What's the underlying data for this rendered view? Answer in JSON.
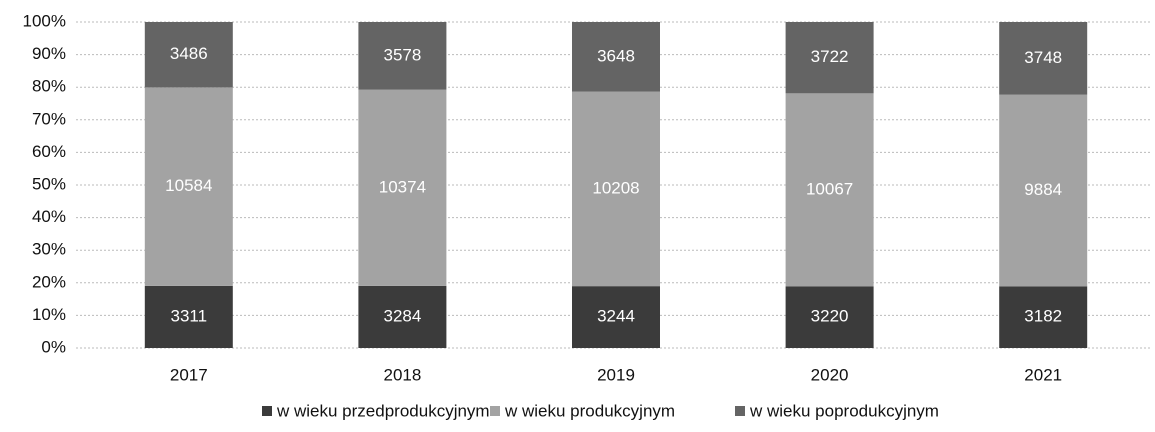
{
  "chart_data": {
    "type": "bar",
    "stack": "percent",
    "categories": [
      "2017",
      "2018",
      "2019",
      "2020",
      "2021"
    ],
    "series": [
      {
        "name": "w wieku przedprodukcyjnym",
        "color": "#3b3b3b",
        "values": [
          3311,
          3284,
          3244,
          3220,
          3182
        ]
      },
      {
        "name": "w wieku produkcyjnym",
        "color": "#a3a3a3",
        "values": [
          10584,
          10374,
          10208,
          10067,
          9884
        ]
      },
      {
        "name": "w wieku poprodukcyjnym",
        "color": "#646464",
        "values": [
          3486,
          3578,
          3648,
          3722,
          3748
        ]
      }
    ],
    "ylim": [
      0,
      100
    ],
    "yticks": [
      {
        "value": 0,
        "label": "0%"
      },
      {
        "value": 10,
        "label": "10%"
      },
      {
        "value": 20,
        "label": "20%"
      },
      {
        "value": 30,
        "label": "30%"
      },
      {
        "value": 40,
        "label": "40%"
      },
      {
        "value": 50,
        "label": "50%"
      },
      {
        "value": 60,
        "label": "60%"
      },
      {
        "value": 70,
        "label": "70%"
      },
      {
        "value": 80,
        "label": "80%"
      },
      {
        "value": 90,
        "label": "90%"
      },
      {
        "value": 100,
        "label": "100%"
      }
    ],
    "grid": true,
    "legend": "bottom"
  }
}
